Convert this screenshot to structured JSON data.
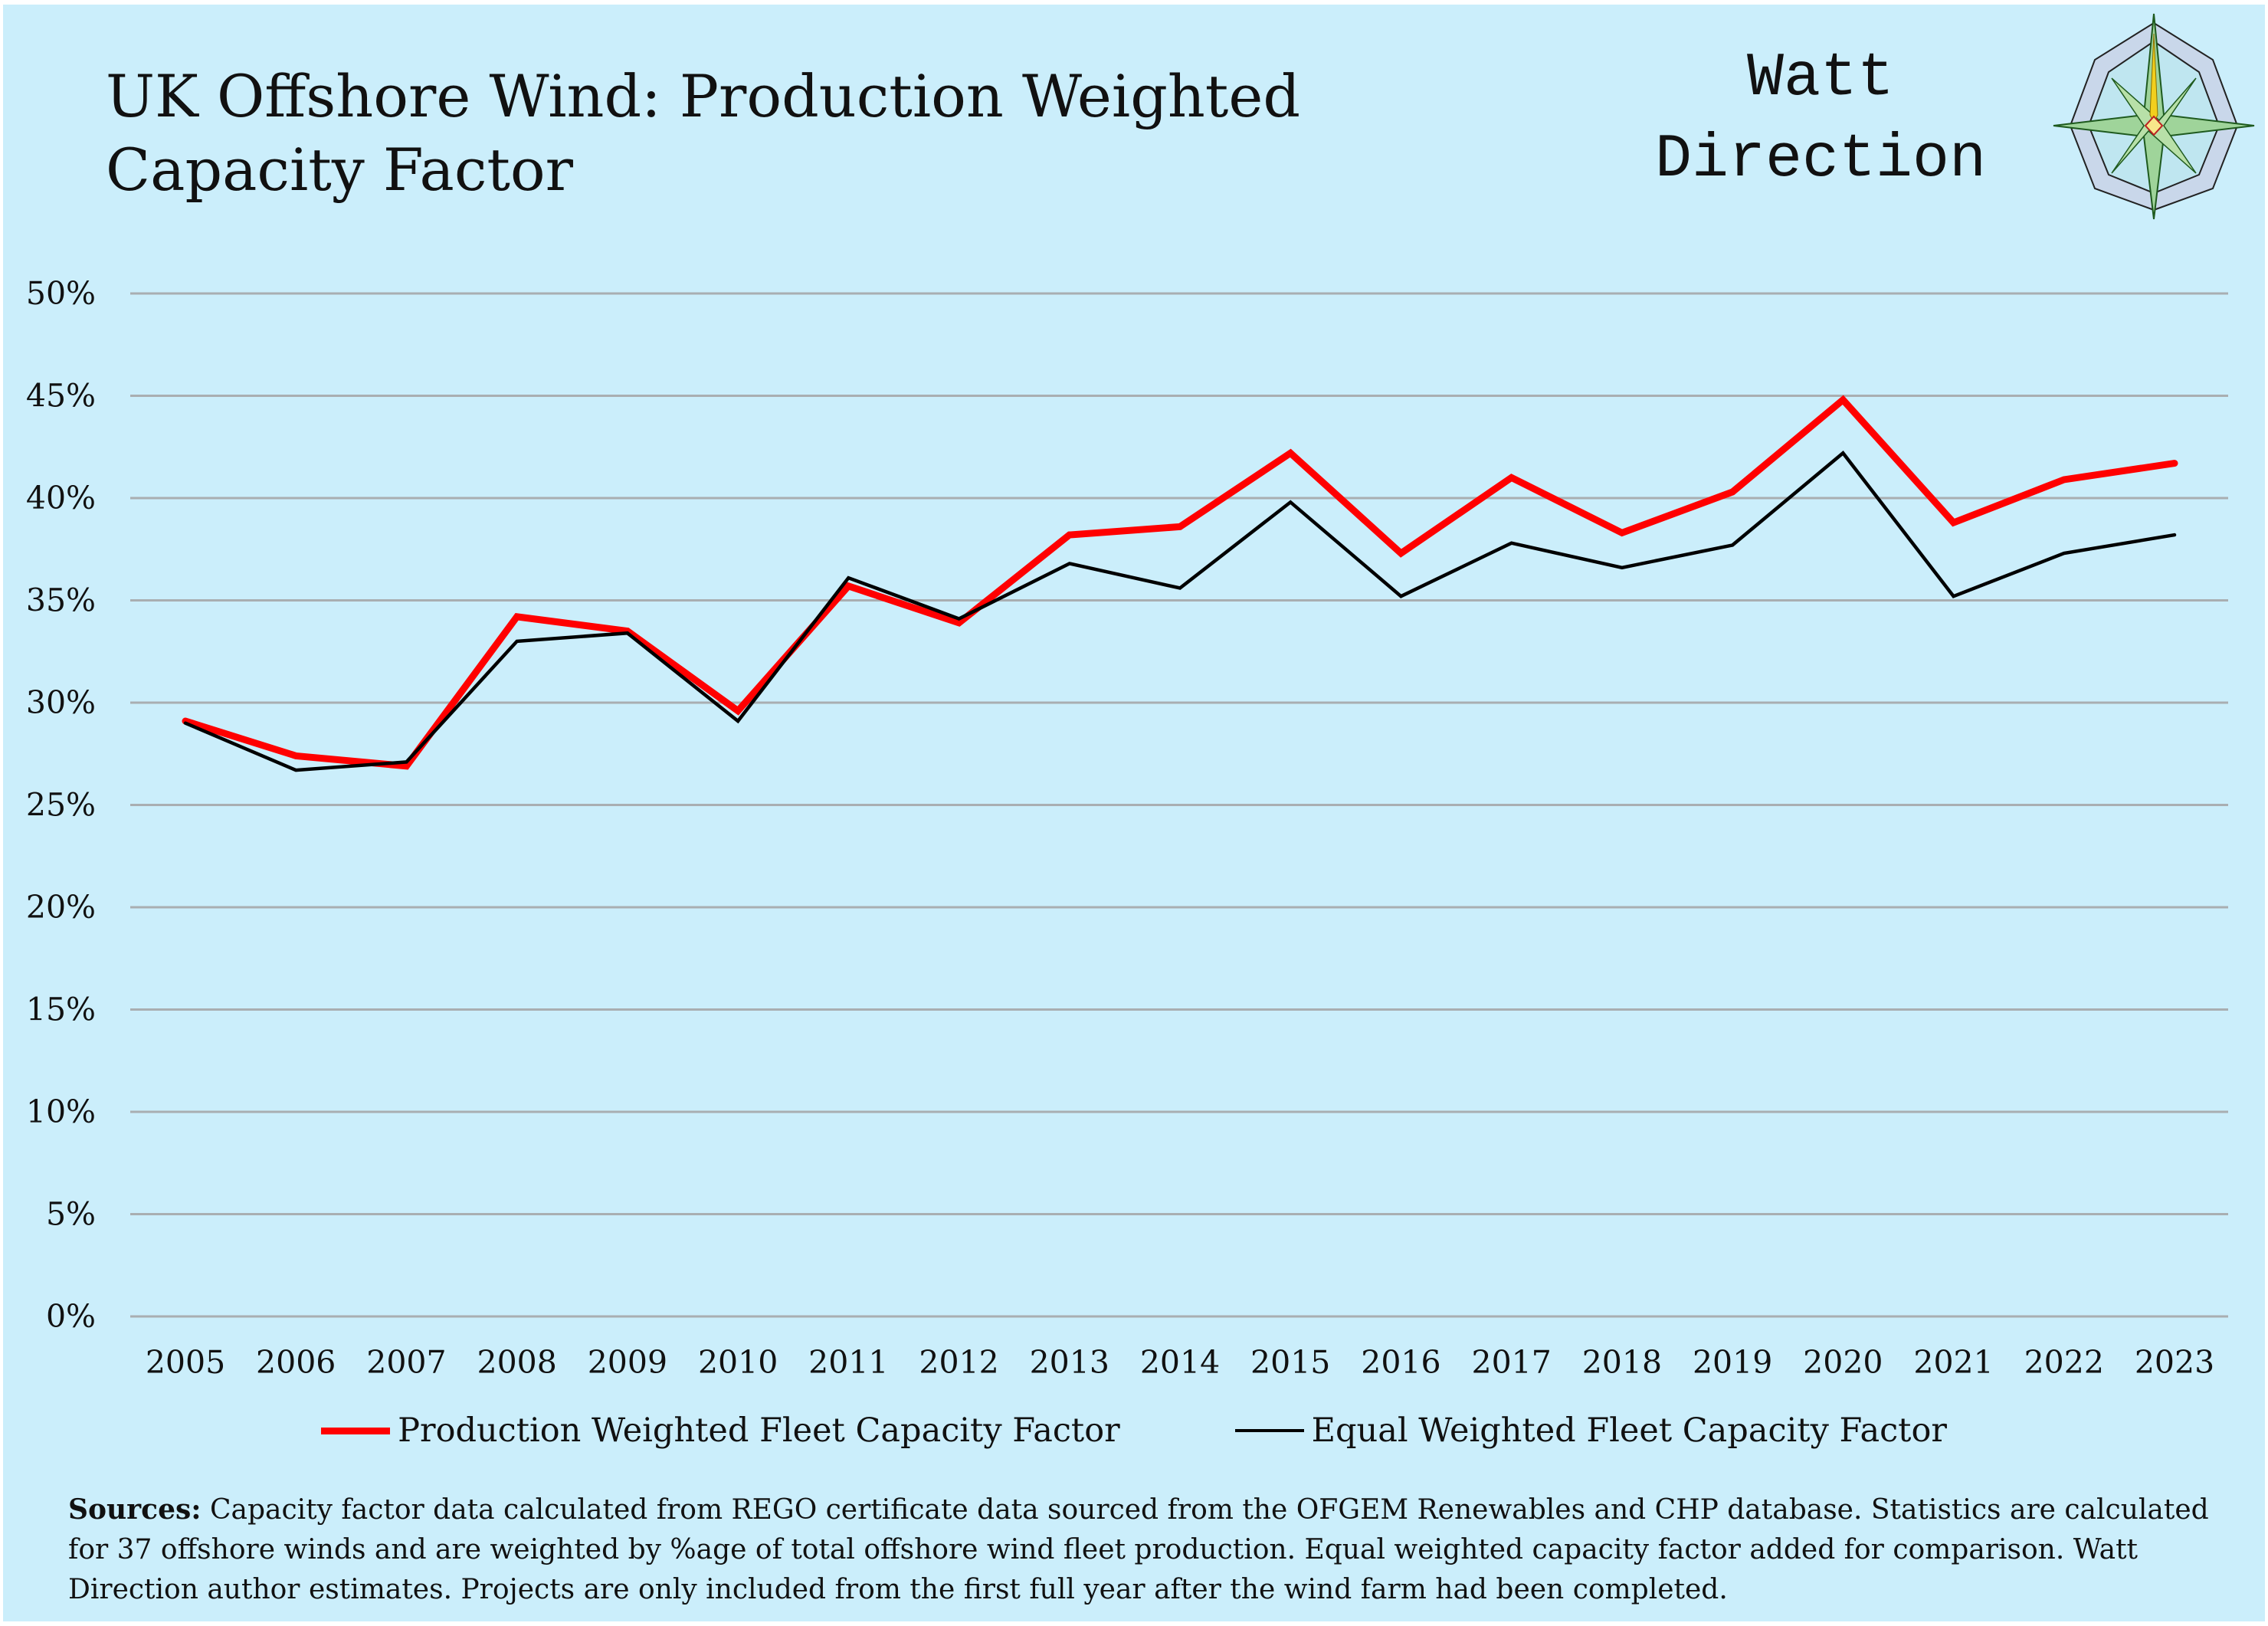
{
  "title_line1": "UK Offshore Wind: Production Weighted",
  "title_line2": "Capacity Factor",
  "brand": {
    "line1": "Watt",
    "line2": "Direction"
  },
  "colors": {
    "background": "#cbeefb",
    "production": "#ff0000",
    "equal": "#000000",
    "grid": "#a9aeb1"
  },
  "chart_data": {
    "type": "line",
    "title": "UK Offshore Wind: Production Weighted Capacity Factor",
    "xlabel": "",
    "ylabel": "",
    "ylim": [
      0,
      50
    ],
    "y_ticks": [
      "0%",
      "5%",
      "10%",
      "15%",
      "20%",
      "25%",
      "30%",
      "35%",
      "40%",
      "45%",
      "50%"
    ],
    "grid": "horizontal",
    "legend_position": "bottom",
    "categories": [
      "2005",
      "2006",
      "2007",
      "2008",
      "2009",
      "2010",
      "2011",
      "2012",
      "2013",
      "2014",
      "2015",
      "2016",
      "2017",
      "2018",
      "2019",
      "2020",
      "2021",
      "2022",
      "2023"
    ],
    "series": [
      {
        "name": "Production Weighted Fleet Capacity Factor",
        "color": "#ff0000",
        "values": [
          29.1,
          27.4,
          26.9,
          34.2,
          33.5,
          29.6,
          35.7,
          33.9,
          38.2,
          38.6,
          42.2,
          37.3,
          41.0,
          38.3,
          40.3,
          44.8,
          38.8,
          40.9,
          41.7
        ]
      },
      {
        "name": "Equal Weighted Fleet Capacity Factor",
        "color": "#000000",
        "values": [
          29.0,
          26.7,
          27.1,
          33.0,
          33.4,
          29.1,
          36.1,
          34.1,
          36.8,
          35.6,
          39.8,
          35.2,
          37.8,
          36.6,
          37.7,
          42.2,
          35.2,
          37.3,
          38.2
        ]
      }
    ]
  },
  "sources": {
    "label": "Sources:",
    "text": " Capacity factor data calculated from REGO certificate data sourced from the OFGEM Renewables and CHP database. Statistics are calculated for 37 offshore winds and are weighted by %age of total offshore wind fleet production.  Equal weighted capacity factor added for comparison.  Watt Direction author estimates. Projects are only included from the first full year after the wind farm had been completed."
  }
}
